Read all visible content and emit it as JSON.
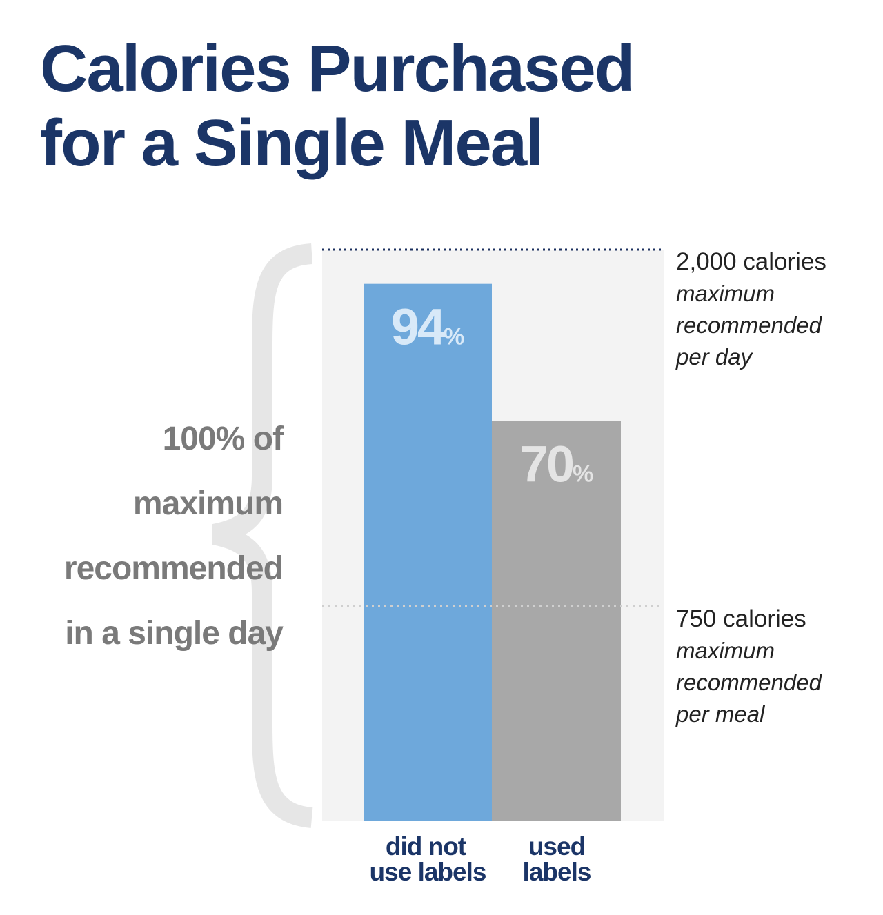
{
  "title": {
    "line1": "Calories Purchased",
    "line2": "for a Single Meal"
  },
  "left_label": {
    "lines": [
      "100% of",
      "maximum",
      "recommended",
      "in a single day"
    ]
  },
  "colors": {
    "title": "#1b3567",
    "bar_did_not_use": "#6ea8db",
    "bar_used": "#a8a8a8",
    "plot_bg": "#f3f3f3",
    "brace": "#e6e6e6",
    "top_line": "#1b2f5e",
    "mid_line": "#cccccc"
  },
  "chart_data": {
    "type": "bar",
    "categories": [
      "did not use labels",
      "used labels"
    ],
    "category_lines": [
      [
        "did not",
        "use labels"
      ],
      [
        "used",
        "labels"
      ]
    ],
    "values": [
      94,
      70
    ],
    "value_labels": [
      {
        "number": "94",
        "unit": "%"
      },
      {
        "number": "70",
        "unit": "%"
      }
    ],
    "unit": "% of maximum recommended daily calories",
    "ylim": [
      0,
      100
    ],
    "reference_lines": [
      {
        "value": 100,
        "label": "2,000 calories",
        "sublines": [
          "maximum",
          "recommended",
          "per day"
        ]
      },
      {
        "value": 37.5,
        "label": "750 calories",
        "sublines": [
          "maximum",
          "recommended",
          "per meal"
        ]
      }
    ],
    "grid": false
  }
}
